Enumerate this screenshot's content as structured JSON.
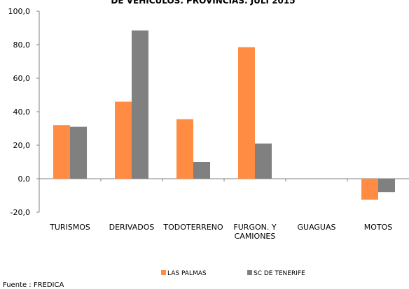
{
  "chart_data": {
    "type": "bar",
    "title": "DE VEHÍCULOS. PROVINCIAS. JULI 2015",
    "categories": [
      "TURISMOS",
      "DERIVADOS",
      "TODOTERRENO",
      "FURGON. Y CAMIONES",
      "GUAGUAS",
      "MOTOS"
    ],
    "category_lines": [
      [
        "TURISMOS"
      ],
      [
        "DERIVADOS"
      ],
      [
        "TODOTERRENO"
      ],
      [
        "FURGON. Y",
        "CAMIONES"
      ],
      [
        "GUAGUAS"
      ],
      [
        "MOTOS"
      ]
    ],
    "series": [
      {
        "name": "LAS PALMAS",
        "color": "#ff8c42",
        "values": [
          32.0,
          46.0,
          35.5,
          78.5,
          0.0,
          -12.5
        ]
      },
      {
        "name": "SC DE TENERIFE",
        "color": "#808080",
        "values": [
          31.0,
          88.5,
          10.0,
          21.0,
          0.0,
          -8.0
        ]
      }
    ],
    "ylim": [
      -20,
      100
    ],
    "yticks": [
      "-20,0",
      "0,0",
      "20,0",
      "40,0",
      "60,0",
      "80,0",
      "100,0"
    ],
    "ytick_values": [
      -20,
      0,
      20,
      40,
      60,
      80,
      100
    ],
    "xlabel": "",
    "ylabel": "",
    "grid": false,
    "legend_position": "bottom"
  },
  "footer": {
    "source": "Fuente : FREDICA"
  }
}
